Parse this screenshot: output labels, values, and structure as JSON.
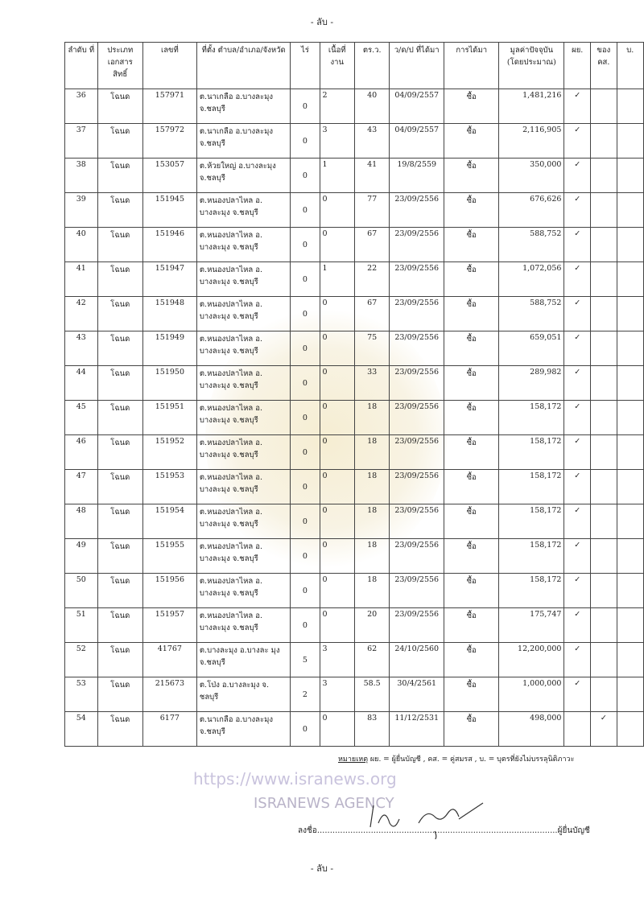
{
  "header": {
    "classification": "- ลับ -"
  },
  "table": {
    "columns": [
      "ลำดับ ที่",
      "ประเภท เอกสาร สิทธิ์",
      "เลขที่",
      "ที่ตั้ง ตำบล/อำเภอ/จังหวัด",
      "ไร่",
      "เนื้อที่ งาน",
      "ตร.ว.",
      "ว/ด/ป ที่ได้มา",
      "การได้มา",
      "มูลค่าปัจจุบัน (โดยประมาณ)",
      "ผย.",
      "ของ คส.",
      "บ."
    ],
    "rows": [
      [
        "36",
        "โฉนด",
        "157971",
        "ต.นาเกลือ อ.บางละมุง จ.ชลบุรี",
        "0",
        "2",
        "40",
        "04/09/2557",
        "ซื้อ",
        "1,481,216",
        "✓",
        "",
        ""
      ],
      [
        "37",
        "โฉนด",
        "157972",
        "ต.นาเกลือ อ.บางละมุง จ.ชลบุรี",
        "0",
        "3",
        "43",
        "04/09/2557",
        "ซื้อ",
        "2,116,905",
        "✓",
        "",
        ""
      ],
      [
        "38",
        "โฉนด",
        "153057",
        "ต.ห้วยใหญ่ อ.บางละมุง จ.ชลบุรี",
        "0",
        "1",
        "41",
        "19/8/2559",
        "ซื้อ",
        "350,000",
        "✓",
        "",
        ""
      ],
      [
        "39",
        "โฉนด",
        "151945",
        "ต.หนองปลาไหล อ. บางละมุง จ.ชลบุรี",
        "0",
        "0",
        "77",
        "23/09/2556",
        "ซื้อ",
        "676,626",
        "✓",
        "",
        ""
      ],
      [
        "40",
        "โฉนด",
        "151946",
        "ต.หนองปลาไหล อ. บางละมุง จ.ชลบุรี",
        "0",
        "0",
        "67",
        "23/09/2556",
        "ซื้อ",
        "588,752",
        "✓",
        "",
        ""
      ],
      [
        "41",
        "โฉนด",
        "151947",
        "ต.หนองปลาไหล อ. บางละมุง จ.ชลบุรี",
        "0",
        "1",
        "22",
        "23/09/2556",
        "ซื้อ",
        "1,072,056",
        "✓",
        "",
        ""
      ],
      [
        "42",
        "โฉนด",
        "151948",
        "ต.หนองปลาไหล อ. บางละมุง จ.ชลบุรี",
        "0",
        "0",
        "67",
        "23/09/2556",
        "ซื้อ",
        "588,752",
        "✓",
        "",
        ""
      ],
      [
        "43",
        "โฉนด",
        "151949",
        "ต.หนองปลาไหล อ. บางละมุง จ.ชลบุรี",
        "0",
        "0",
        "75",
        "23/09/2556",
        "ซื้อ",
        "659,051",
        "✓",
        "",
        ""
      ],
      [
        "44",
        "โฉนด",
        "151950",
        "ต.หนองปลาไหล อ. บางละมุง จ.ชลบุรี",
        "0",
        "0",
        "33",
        "23/09/2556",
        "ซื้อ",
        "289,982",
        "✓",
        "",
        ""
      ],
      [
        "45",
        "โฉนด",
        "151951",
        "ต.หนองปลาไหล อ. บางละมุง จ.ชลบุรี",
        "0",
        "0",
        "18",
        "23/09/2556",
        "ซื้อ",
        "158,172",
        "✓",
        "",
        ""
      ],
      [
        "46",
        "โฉนด",
        "151952",
        "ต.หนองปลาไหล อ. บางละมุง จ.ชลบุรี",
        "0",
        "0",
        "18",
        "23/09/2556",
        "ซื้อ",
        "158,172",
        "✓",
        "",
        ""
      ],
      [
        "47",
        "โฉนด",
        "151953",
        "ต.หนองปลาไหล อ. บางละมุง จ.ชลบุรี",
        "0",
        "0",
        "18",
        "23/09/2556",
        "ซื้อ",
        "158,172",
        "✓",
        "",
        ""
      ],
      [
        "48",
        "โฉนด",
        "151954",
        "ต.หนองปลาไหล อ. บางละมุง จ.ชลบุรี",
        "0",
        "0",
        "18",
        "23/09/2556",
        "ซื้อ",
        "158,172",
        "✓",
        "",
        ""
      ],
      [
        "49",
        "โฉนด",
        "151955",
        "ต.หนองปลาไหล อ. บางละมุง จ.ชลบุรี",
        "0",
        "0",
        "18",
        "23/09/2556",
        "ซื้อ",
        "158,172",
        "✓",
        "",
        ""
      ],
      [
        "50",
        "โฉนด",
        "151956",
        "ต.หนองปลาไหล อ. บางละมุง จ.ชลบุรี",
        "0",
        "0",
        "18",
        "23/09/2556",
        "ซื้อ",
        "158,172",
        "✓",
        "",
        ""
      ],
      [
        "51",
        "โฉนด",
        "151957",
        "ต.หนองปลาไหล อ. บางละมุง จ.ชลบุรี",
        "0",
        "0",
        "20",
        "23/09/2556",
        "ซื้อ",
        "175,747",
        "✓",
        "",
        ""
      ],
      [
        "52",
        "โฉนด",
        "41767",
        "ต.บางละมุง อ.บางละ มุง จ.ชลบุรี",
        "5",
        "3",
        "62",
        "24/10/2560",
        "ซื้อ",
        "12,200,000",
        "✓",
        "",
        ""
      ],
      [
        "53",
        "โฉนด",
        "215673",
        "ต.โป่ง อ.บางละมุง จ. ชลบุรี",
        "2",
        "3",
        "58.5",
        "30/4/2561",
        "ซื้อ",
        "1,000,000",
        "✓",
        "",
        ""
      ],
      [
        "54",
        "โฉนด",
        "6177",
        "ต.นาเกลือ อ.บางละมุง จ.ชลบุรี",
        "0",
        "0",
        "83",
        "11/12/2531",
        "ซื้อ",
        "498,000",
        "",
        "✓",
        ""
      ]
    ]
  },
  "note": {
    "label": "หมายเหตุ",
    "text": " ผย. = ผู้ยื่นบัญชี , คส. = คู่สมรส , บ. = บุตรที่ยังไม่บรรลุนิติภาวะ"
  },
  "signature": {
    "prefix": "ลงชื่อ",
    "dots": "..............................................................................................",
    "suffix": "ผู้ยื่นบัญชี"
  },
  "footer": {
    "classification": "- ลับ -"
  },
  "watermark": {
    "text": "ISRANEWS AGENCY",
    "url": "https://www.isranews.org"
  }
}
